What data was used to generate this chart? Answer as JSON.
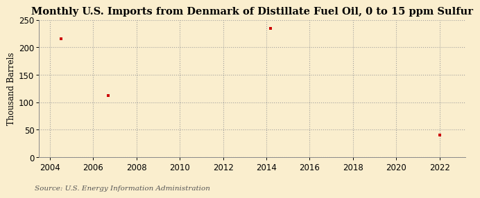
{
  "title": "Monthly U.S. Imports from Denmark of Distillate Fuel Oil, 0 to 15 ppm Sulfur",
  "ylabel": "Thousand Barrels",
  "source": "Source: U.S. Energy Information Administration",
  "background_color": "#faeece",
  "plot_bg_color": "#faeece",
  "data_x": [
    2004.5,
    2006.7,
    2014.2,
    2022.0
  ],
  "data_y": [
    215,
    112,
    235,
    40
  ],
  "marker_color": "#cc0000",
  "marker_shape": "s",
  "marker_size": 3.5,
  "xlim": [
    2003.5,
    2023.2
  ],
  "ylim": [
    0,
    250
  ],
  "xticks": [
    2004,
    2006,
    2008,
    2010,
    2012,
    2014,
    2016,
    2018,
    2020,
    2022
  ],
  "yticks": [
    0,
    50,
    100,
    150,
    200,
    250
  ],
  "title_fontsize": 10.5,
  "axis_fontsize": 8.5,
  "source_fontsize": 7.5,
  "grid_color": "#999999",
  "grid_style": ":",
  "grid_alpha": 0.9,
  "grid_linewidth": 0.8
}
